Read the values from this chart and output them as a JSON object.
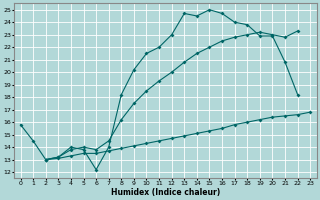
{
  "xlabel": "Humidex (Indice chaleur)",
  "bg_color": "#b2d8d8",
  "line_color": "#006666",
  "grid_color": "#ffffff",
  "xlim": [
    -0.5,
    23.5
  ],
  "ylim": [
    11.5,
    25.5
  ],
  "xticks": [
    0,
    1,
    2,
    3,
    4,
    5,
    6,
    7,
    8,
    9,
    10,
    11,
    12,
    13,
    14,
    15,
    16,
    17,
    18,
    19,
    20,
    21,
    22,
    23
  ],
  "yticks": [
    12,
    13,
    14,
    15,
    16,
    17,
    18,
    19,
    20,
    21,
    22,
    23,
    24,
    25
  ],
  "line1_x": [
    0,
    1,
    2,
    3,
    4,
    5,
    6,
    7,
    8,
    9,
    10,
    11,
    12,
    13,
    14,
    15,
    16,
    17,
    18,
    19,
    20,
    21,
    22
  ],
  "line1_y": [
    15.8,
    14.5,
    13.0,
    13.2,
    14.0,
    13.8,
    12.2,
    14.0,
    18.2,
    20.2,
    21.5,
    22.0,
    23.0,
    24.7,
    24.5,
    25.0,
    24.7,
    24.0,
    23.8,
    22.9,
    22.9,
    20.8,
    18.2
  ],
  "line2_x": [
    2,
    3,
    4,
    5,
    6,
    7,
    8,
    9,
    10,
    11,
    12,
    13,
    14,
    15,
    16,
    17,
    18,
    19,
    20,
    21,
    22
  ],
  "line2_y": [
    13.0,
    13.2,
    13.8,
    14.0,
    13.8,
    14.5,
    16.2,
    17.5,
    18.5,
    19.3,
    20.0,
    20.8,
    21.5,
    22.0,
    22.5,
    22.8,
    23.0,
    23.2,
    23.0,
    22.8,
    23.3
  ],
  "line3_x": [
    2,
    3,
    4,
    5,
    6,
    7,
    8,
    9,
    10,
    11,
    12,
    13,
    14,
    15,
    16,
    17,
    18,
    19,
    20,
    21,
    22,
    23
  ],
  "line3_y": [
    13.0,
    13.1,
    13.3,
    13.5,
    13.5,
    13.7,
    13.9,
    14.1,
    14.3,
    14.5,
    14.7,
    14.9,
    15.1,
    15.3,
    15.5,
    15.8,
    16.0,
    16.2,
    16.4,
    16.5,
    16.6,
    16.8
  ]
}
